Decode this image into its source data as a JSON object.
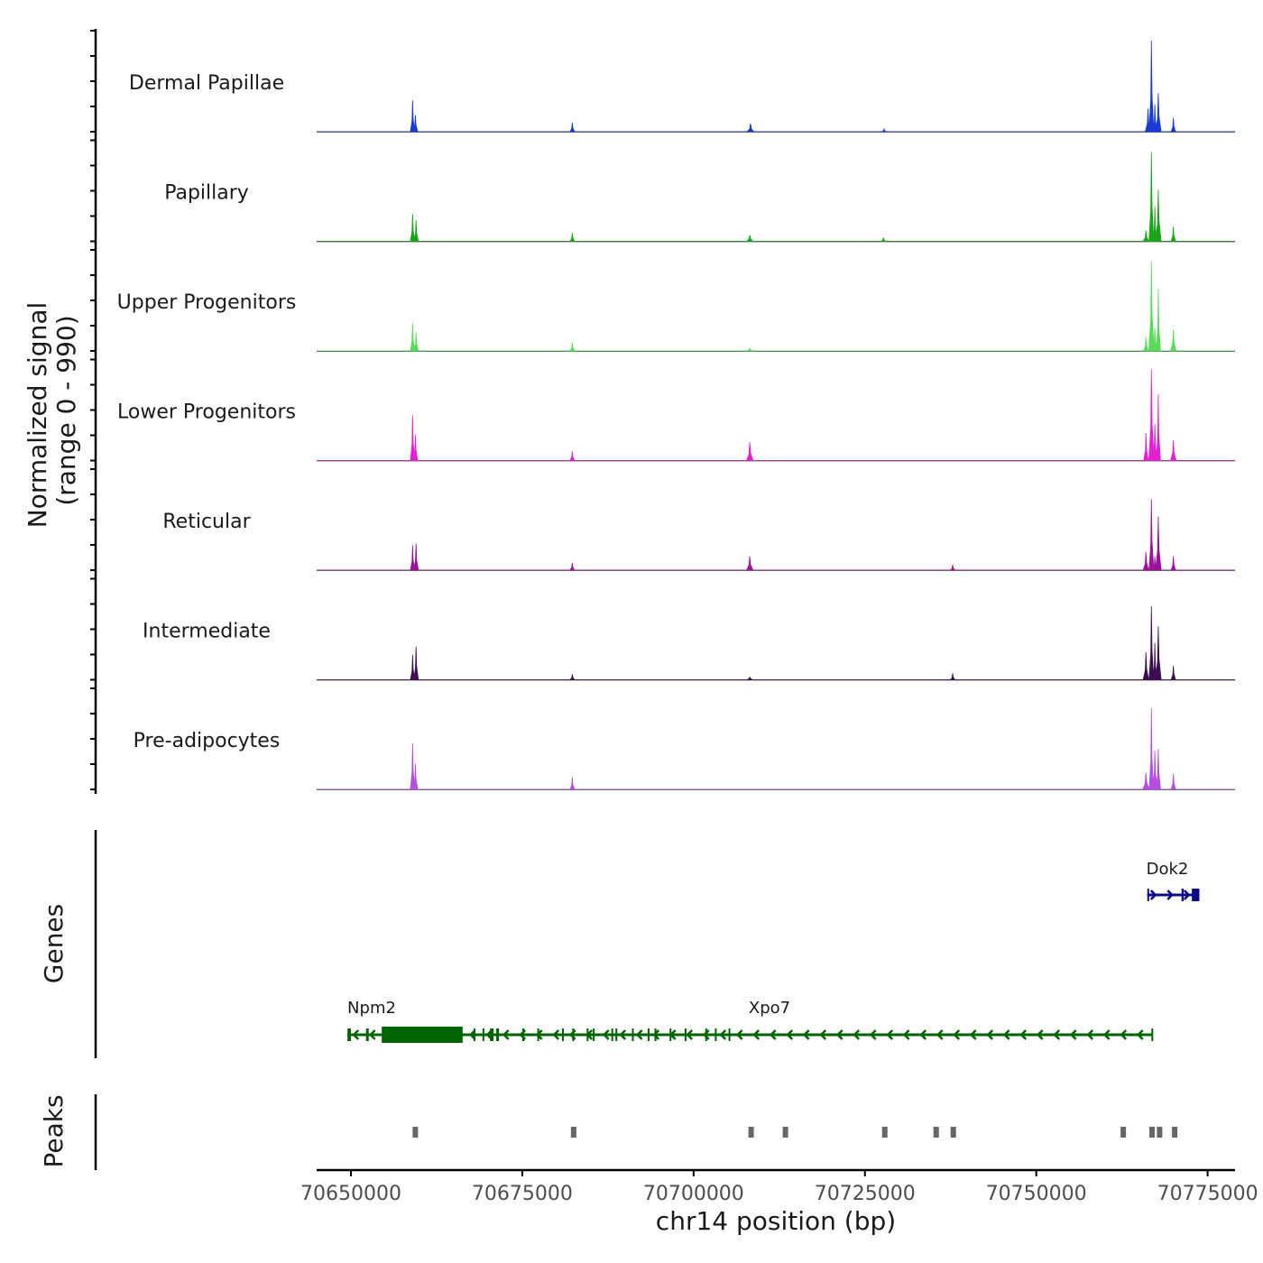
{
  "chart_data": {
    "type": "area",
    "title": "",
    "chromosome": "chr14",
    "xlabel": "chr14 position (bp)",
    "xlim": [
      70645000,
      70779000
    ],
    "x_ticks": [
      70650000,
      70675000,
      70700000,
      70725000,
      70750000,
      70775000
    ],
    "x_tick_labels": [
      "70650000",
      "70675000",
      "70700000",
      "70725000",
      "70750000",
      "70775000"
    ],
    "ylabel": "Normalized signal",
    "ylabel_range": "(range 0 - 990)",
    "ylim": [
      0,
      990
    ],
    "peak_widths_bp": [
      170,
      220,
      180,
      300,
      200,
      250,
      220,
      180,
      260,
      200,
      180,
      220
    ],
    "series": [
      {
        "name": "Dermal Papillae",
        "color": "#1a3ad6",
        "peaks": [
          [
            70659000,
            340
          ],
          [
            70659400,
            180
          ],
          [
            70682300,
            100
          ],
          [
            70708300,
            90
          ],
          [
            70727800,
            30
          ],
          [
            70766300,
            250
          ],
          [
            70766800,
            990
          ],
          [
            70767300,
            300
          ],
          [
            70767800,
            420
          ],
          [
            70770000,
            150
          ]
        ]
      },
      {
        "name": "Papillary",
        "color": "#19a519",
        "peaks": [
          [
            70659000,
            300
          ],
          [
            70659500,
            230
          ],
          [
            70682300,
            90
          ],
          [
            70708200,
            70
          ],
          [
            70727700,
            40
          ],
          [
            70766000,
            120
          ],
          [
            70766800,
            970
          ],
          [
            70767300,
            380
          ],
          [
            70767800,
            560
          ],
          [
            70770000,
            160
          ]
        ]
      },
      {
        "name": "Upper Progenitors",
        "color": "#5ada5a",
        "peaks": [
          [
            70659000,
            300
          ],
          [
            70659500,
            200
          ],
          [
            70682300,
            90
          ],
          [
            70708200,
            30
          ],
          [
            70766000,
            150
          ],
          [
            70766800,
            970
          ],
          [
            70767300,
            250
          ],
          [
            70767800,
            680
          ],
          [
            70770000,
            230
          ]
        ]
      },
      {
        "name": "Lower Progenitors",
        "color": "#e221d2",
        "peaks": [
          [
            70659000,
            490
          ],
          [
            70659400,
            280
          ],
          [
            70682300,
            100
          ],
          [
            70708200,
            200
          ],
          [
            70766000,
            300
          ],
          [
            70766800,
            990
          ],
          [
            70767300,
            400
          ],
          [
            70767800,
            720
          ],
          [
            70770000,
            220
          ]
        ]
      },
      {
        "name": "Reticular",
        "color": "#9a139a",
        "peaks": [
          [
            70659000,
            270
          ],
          [
            70659500,
            290
          ],
          [
            70682300,
            80
          ],
          [
            70708200,
            150
          ],
          [
            70737800,
            60
          ],
          [
            70766000,
            200
          ],
          [
            70766800,
            770
          ],
          [
            70767300,
            150
          ],
          [
            70767800,
            580
          ],
          [
            70770000,
            150
          ]
        ]
      },
      {
        "name": "Intermediate",
        "color": "#3d0e52",
        "peaks": [
          [
            70659000,
            270
          ],
          [
            70659500,
            360
          ],
          [
            70682300,
            60
          ],
          [
            70708200,
            30
          ],
          [
            70737800,
            70
          ],
          [
            70766000,
            300
          ],
          [
            70766800,
            800
          ],
          [
            70767300,
            400
          ],
          [
            70767800,
            580
          ],
          [
            70770000,
            150
          ]
        ]
      },
      {
        "name": "Pre-adipocytes",
        "color": "#b44fe0",
        "peaks": [
          [
            70659000,
            500
          ],
          [
            70659400,
            280
          ],
          [
            70682300,
            130
          ],
          [
            70766000,
            180
          ],
          [
            70766800,
            880
          ],
          [
            70767300,
            420
          ],
          [
            70767800,
            440
          ],
          [
            70770000,
            170
          ]
        ]
      }
    ],
    "genes_title": "Genes",
    "genes": [
      {
        "name": "Dok2",
        "start": 70766200,
        "end": 70773800,
        "strand": "+",
        "color": "#0c0c8a",
        "exons": [
          [
            70766200,
            70766300
          ],
          [
            70771200,
            70771500
          ],
          [
            70772700,
            70773800
          ]
        ]
      },
      {
        "name": "Xpo7",
        "start": 70649500,
        "end": 70767000,
        "strand": "-",
        "color": "#006400",
        "exons": [
          [
            70649500,
            70650000
          ],
          [
            70652200,
            70652600
          ],
          [
            70654500,
            70666300
          ],
          [
            70667900,
            70668100
          ],
          [
            70669200,
            70669400
          ],
          [
            70670300,
            70670800
          ],
          [
            70671200,
            70671600
          ],
          [
            70675000,
            70675300
          ],
          [
            70677200,
            70677400
          ],
          [
            70680800,
            70681000
          ],
          [
            70682300,
            70682500
          ],
          [
            70684400,
            70684600
          ],
          [
            70685300,
            70685500
          ],
          [
            70688000,
            70688200
          ],
          [
            70688600,
            70688800
          ],
          [
            70691000,
            70691200
          ],
          [
            70693300,
            70693500
          ],
          [
            70694300,
            70694500
          ],
          [
            70696500,
            70696700
          ],
          [
            70698700,
            70698900
          ],
          [
            70701700,
            70701900
          ],
          [
            70703100,
            70703300
          ],
          [
            70705100,
            70705300
          ],
          [
            70766800,
            70767000
          ]
        ]
      },
      {
        "name": "Npm2",
        "start": 70649500,
        "end": 70652700,
        "strand": "-",
        "color": "#006400",
        "exons": []
      }
    ],
    "peaks_title": "Peaks",
    "peak_regions": [
      [
        70659000,
        70659600
      ],
      [
        70682100,
        70682700
      ],
      [
        70708000,
        70708600
      ],
      [
        70713000,
        70713600
      ],
      [
        70727500,
        70728100
      ],
      [
        70735000,
        70735600
      ],
      [
        70737500,
        70738100
      ],
      [
        70762300,
        70762900
      ],
      [
        70766500,
        70767100
      ],
      [
        70767600,
        70768200
      ],
      [
        70769800,
        70770400
      ]
    ],
    "peak_color": "#666666"
  }
}
